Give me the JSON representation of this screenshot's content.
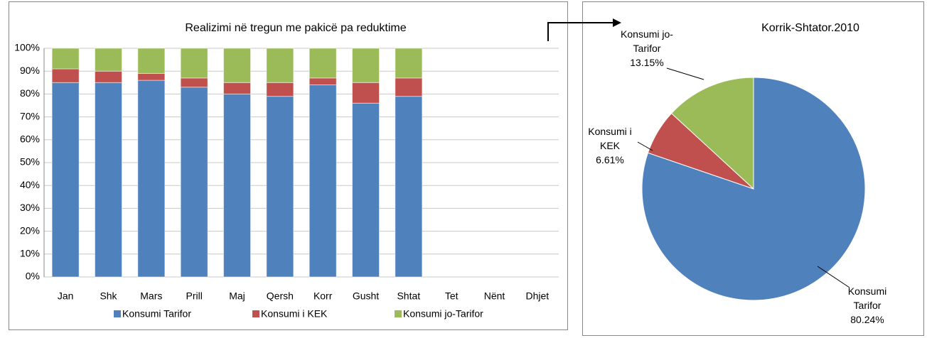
{
  "chart_data": [
    {
      "type": "stacked_bar",
      "title": "Realizimi në tregun me pakicë pa reduktime",
      "categories": [
        "Jan",
        "Shk",
        "Mars",
        "Prill",
        "Maj",
        "Qersh",
        "Korr",
        "Gusht",
        "Shtat",
        "Tet",
        "Nënt",
        "Dhjet"
      ],
      "series": [
        {
          "name": "Konsumi Tarifor",
          "color": "#4f81bd",
          "values": [
            85,
            85,
            86,
            83,
            80,
            79,
            84,
            76,
            79,
            null,
            null,
            null
          ]
        },
        {
          "name": "Konsumi i KEK",
          "color": "#c0504d",
          "values": [
            6,
            5,
            3,
            4,
            5,
            6,
            3,
            9,
            8,
            null,
            null,
            null
          ]
        },
        {
          "name": "Konsumi jo-Tarifor",
          "color": "#9bbb59",
          "values": [
            9,
            10,
            11,
            13,
            15,
            15,
            13,
            15,
            13,
            null,
            null,
            null
          ]
        }
      ],
      "ylim": [
        0,
        100
      ],
      "yticks": [
        {
          "value": 0,
          "label": "0%"
        },
        {
          "value": 10,
          "label": "10%"
        },
        {
          "value": 20,
          "label": "20%"
        },
        {
          "value": 30,
          "label": "30%"
        },
        {
          "value": 40,
          "label": "40%"
        },
        {
          "value": 50,
          "label": "50%"
        },
        {
          "value": 60,
          "label": "60%"
        },
        {
          "value": 70,
          "label": "70%"
        },
        {
          "value": 80,
          "label": "80%"
        },
        {
          "value": 90,
          "label": "90%"
        },
        {
          "value": 100,
          "label": "100%"
        }
      ],
      "grid": true,
      "legend": "bottom"
    },
    {
      "type": "pie",
      "title": "Korrik-Shtator.2010",
      "categories": [
        "Konsumi Tarifor",
        "Konsumi i KEK",
        "Konsumi jo-Tarifor"
      ],
      "values": [
        80.24,
        6.61,
        13.15
      ],
      "value_labels": [
        "80.24%",
        "6.61%",
        "13.15%"
      ],
      "colors": [
        "#4f81bd",
        "#c0504d",
        "#9bbb59"
      ]
    }
  ]
}
